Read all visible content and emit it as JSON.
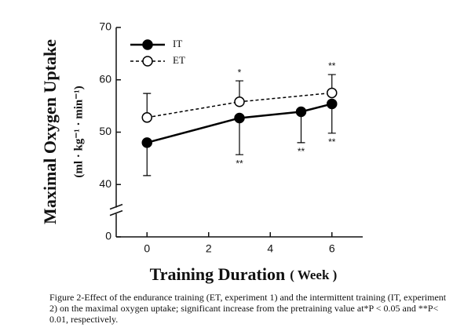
{
  "chart_data": {
    "type": "line",
    "ylabel": "Maximal Oxygen Uptake",
    "ylabel_unit": "(ml · kg⁻¹ · min⁻¹)",
    "xlabel": "Training Duration",
    "xlabel_unit": "( Week )",
    "caption": "Figure 2-Effect of the endurance training (ET, experiment 1) and the intermittent training (IT, experiment 2) on the maximal oxygen uptake; significant increase from the pretraining value at*P < 0.05 and **P< 0.01, respectively.",
    "xlim": [
      -1,
      7
    ],
    "xticks": [
      0,
      2,
      4,
      6
    ],
    "ylim": [
      0,
      70
    ],
    "yticks": [
      0,
      40,
      50,
      60,
      70
    ],
    "ybreak": [
      0,
      40
    ],
    "legend": "upper left",
    "series": [
      {
        "name": "IT",
        "color": "#000000",
        "style": "solid",
        "marker": "filled",
        "error_direction": "down",
        "x": [
          0,
          3,
          5,
          6
        ],
        "values": [
          48,
          52.7,
          53.9,
          55.4
        ],
        "errors": [
          6.3,
          7,
          5.9,
          5.6
        ],
        "marks": [
          null,
          "**",
          "**",
          "**"
        ]
      },
      {
        "name": "ET",
        "color": "#000000",
        "style": "dashed",
        "marker": "open",
        "error_direction": "up",
        "x": [
          0,
          3,
          6
        ],
        "values": [
          52.8,
          55.8,
          57.5
        ],
        "errors": [
          4.6,
          4,
          3.5
        ],
        "marks": [
          null,
          "*",
          "**"
        ]
      }
    ]
  }
}
